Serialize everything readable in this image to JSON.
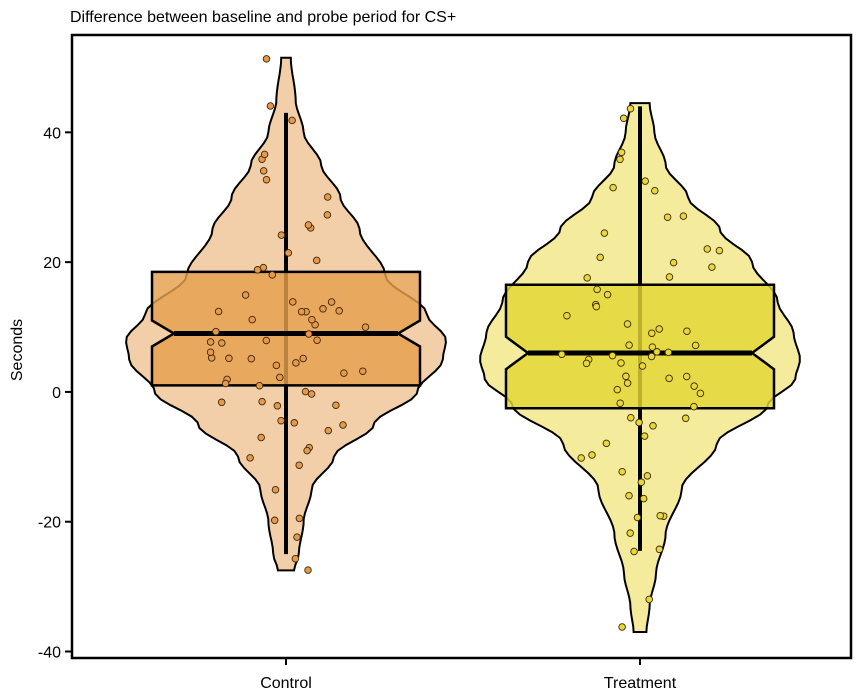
{
  "chart_data": {
    "type": "violin",
    "title": "Difference between baseline and probe period for CS+",
    "xlabel": "",
    "ylabel": "Seconds",
    "categories": [
      "Control",
      "Treatment"
    ],
    "ylim": [
      -41,
      55
    ],
    "yticks": [
      -40,
      -20,
      0,
      20,
      40
    ],
    "grid": false,
    "legend": "none",
    "groups": [
      {
        "name": "Control",
        "violin_color": "#f2cfa8",
        "box_color": "#e59f4e",
        "point_color": "#e8984a",
        "box": {
          "q1": 1,
          "median": 9,
          "q3": 18.5,
          "notch_low": 7,
          "notch_high": 11,
          "whisker_low": -25,
          "whisker_high": 43
        },
        "violin_range": [
          -27.5,
          51.5
        ],
        "density_profile": [
          [
            -27.5,
            0.05
          ],
          [
            -25,
            0.08
          ],
          [
            -20,
            0.11
          ],
          [
            -15,
            0.16
          ],
          [
            -10,
            0.3
          ],
          [
            -5,
            0.55
          ],
          [
            0,
            0.82
          ],
          [
            5,
            0.98
          ],
          [
            8,
            1.0
          ],
          [
            12,
            0.88
          ],
          [
            18,
            0.62
          ],
          [
            25,
            0.46
          ],
          [
            30,
            0.34
          ],
          [
            35,
            0.22
          ],
          [
            40,
            0.11
          ],
          [
            45,
            0.06
          ],
          [
            51.5,
            0.03
          ]
        ],
        "points": [
          -25,
          -22,
          -19,
          -19,
          -15,
          -12,
          -10,
          -9,
          -8,
          -7,
          -6,
          -5,
          -5,
          -4,
          -3,
          -2,
          -2,
          -1,
          0,
          0,
          1,
          1,
          2,
          2,
          3,
          3,
          4,
          4,
          5,
          5,
          5,
          6,
          6,
          7,
          7,
          8,
          8,
          9,
          9,
          10,
          10,
          11,
          11,
          12,
          12,
          13,
          13,
          14,
          15,
          15,
          16,
          17,
          18,
          19,
          20,
          22,
          24,
          25,
          26,
          28,
          30,
          32,
          33,
          35,
          37,
          42,
          43,
          51,
          -28
        ]
      },
      {
        "name": "Treatment",
        "violin_color": "#f5eb9c",
        "box_color": "#e3d733",
        "point_color": "#e8d83a",
        "box": {
          "q1": -2.5,
          "median": 6,
          "q3": 16.5,
          "notch_low": 3.5,
          "notch_high": 8.5,
          "whisker_low": -24.5,
          "whisker_high": 44
        },
        "violin_range": [
          -37,
          44.5
        ],
        "density_profile": [
          [
            -37,
            0.04
          ],
          [
            -33,
            0.06
          ],
          [
            -28,
            0.1
          ],
          [
            -22,
            0.16
          ],
          [
            -15,
            0.26
          ],
          [
            -8,
            0.48
          ],
          [
            -2,
            0.8
          ],
          [
            2,
            0.97
          ],
          [
            5,
            1.0
          ],
          [
            9,
            0.96
          ],
          [
            14,
            0.86
          ],
          [
            20,
            0.7
          ],
          [
            25,
            0.5
          ],
          [
            30,
            0.3
          ],
          [
            35,
            0.16
          ],
          [
            40,
            0.09
          ],
          [
            44.5,
            0.06
          ]
        ],
        "points": [
          -37,
          -32,
          -25,
          -24,
          -22,
          -20,
          -19,
          -18,
          -17,
          -16,
          -15,
          -13,
          -12,
          -10,
          -9,
          -8,
          -7,
          -6,
          -5,
          -4,
          -3,
          -2,
          -1,
          0,
          0,
          1,
          1,
          2,
          2,
          3,
          3,
          4,
          4,
          5,
          5,
          5,
          6,
          6,
          7,
          7,
          8,
          8,
          9,
          10,
          10,
          11,
          12,
          13,
          14,
          15,
          16,
          17,
          18,
          19,
          20,
          21,
          22,
          23,
          25,
          27,
          28,
          30,
          31,
          33,
          35,
          38,
          42,
          44
        ]
      }
    ]
  }
}
